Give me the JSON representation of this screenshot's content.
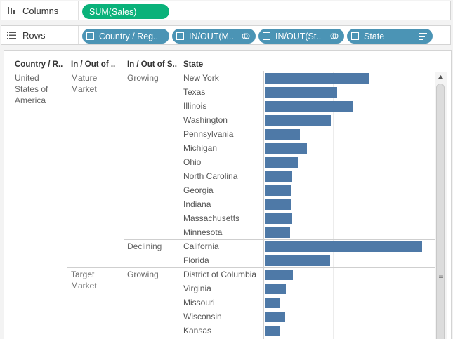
{
  "shelves": {
    "columns": {
      "label": "Columns",
      "icon": "columns-icon",
      "pills": [
        {
          "text": "SUM(Sales)",
          "color": "#0ab27a"
        }
      ]
    },
    "rows": {
      "label": "Rows",
      "icon": "rows-icon",
      "pills": [
        {
          "text": "Country / Reg..",
          "icon": "collapse-icon",
          "color": "#4b94b5"
        },
        {
          "text": "IN/OUT(M..",
          "icon": "collapse-icon",
          "trail_icon": "set-icon",
          "color": "#4b94b5"
        },
        {
          "text": "IN/OUT(St..",
          "icon": "collapse-icon",
          "trail_icon": "set-icon",
          "color": "#4b94b5"
        },
        {
          "text": "State",
          "icon": "expand-icon",
          "trail_icon": "sort-descending-icon",
          "color": "#4b94b5"
        }
      ]
    }
  },
  "table": {
    "headers": {
      "country": "Country / R..",
      "market": "In / Out of ..",
      "status": "In / Out of S..",
      "state": "State"
    },
    "country_value": "United States of America",
    "groups": [
      {
        "market": "Mature Market",
        "status": "Growing"
      },
      {
        "market": "",
        "status": "Declining"
      },
      {
        "market": "Target Market",
        "status": "Growing"
      }
    ]
  },
  "chart_data": {
    "type": "bar",
    "orientation": "horizontal",
    "measure": "SUM(Sales)",
    "categories": [
      "New York",
      "Texas",
      "Illinois",
      "Washington",
      "Pennsylvania",
      "Michigan",
      "Ohio",
      "North Carolina",
      "Georgia",
      "Indiana",
      "Massachusetts",
      "Minnesota",
      "California",
      "Florida",
      "District of Columbia",
      "Virginia",
      "Missouri",
      "Wisconsin",
      "Kansas"
    ],
    "values": [
      155,
      107,
      131,
      99,
      52,
      63,
      50,
      41,
      40,
      39,
      41,
      38,
      234,
      97,
      42,
      31,
      23,
      30,
      22
    ],
    "groups": [
      "Mature Market / Growing",
      "Mature Market / Growing",
      "Mature Market / Growing",
      "Mature Market / Growing",
      "Mature Market / Growing",
      "Mature Market / Growing",
      "Mature Market / Growing",
      "Mature Market / Growing",
      "Mature Market / Growing",
      "Mature Market / Growing",
      "Mature Market / Growing",
      "Mature Market / Growing",
      "Mature Market / Declining",
      "Mature Market / Declining",
      "Target Market / Growing",
      "Target Market / Growing",
      "Target Market / Growing",
      "Target Market / Growing",
      "Target Market / Growing"
    ],
    "gridlines": [
      0,
      100,
      200
    ],
    "xlim": [
      0,
      240
    ],
    "bar_color": "#4e79a7"
  }
}
